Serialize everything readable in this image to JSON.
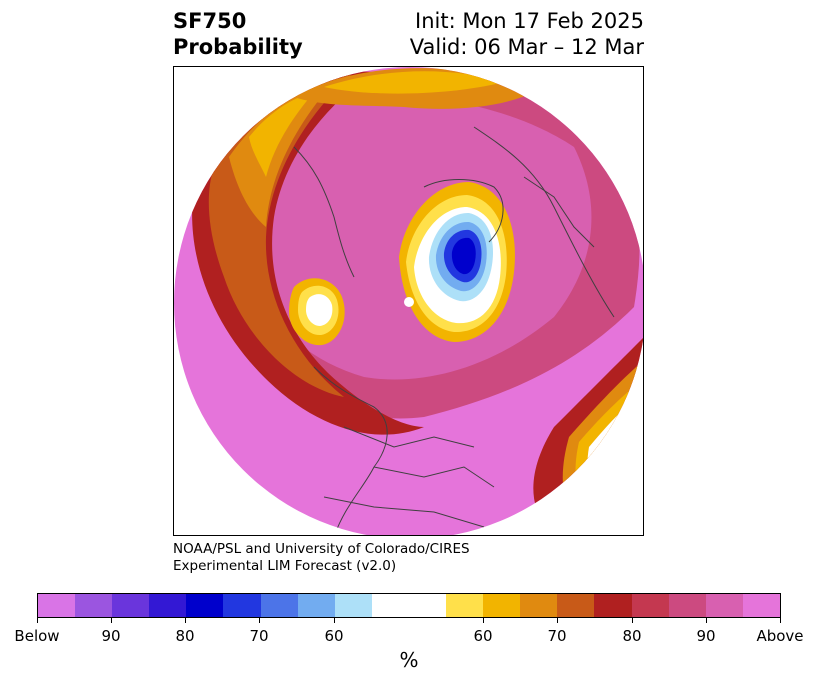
{
  "title": {
    "left_line1": "SF750",
    "left_line2": "Probability",
    "right_line1": "Init: Mon 17 Feb 2025",
    "right_line2": "Valid: 06 Mar – 12 Mar"
  },
  "credit": {
    "line1": "NOAA/PSL and University of Colorado/CIRES",
    "line2": "Experimental LIM Forecast (v2.0)"
  },
  "colorbar": {
    "colors": [
      "#d974e6",
      "#9b55e0",
      "#6a35dc",
      "#3318d4",
      "#0000cc",
      "#2237e0",
      "#4c74e8",
      "#72acf0",
      "#ade0f8",
      "#ffffff",
      "#ffffff",
      "#ffe04a",
      "#f2b400",
      "#e08a10",
      "#c85a18",
      "#b02020",
      "#c43850",
      "#cc4a80",
      "#d860b0",
      "#e574da"
    ],
    "tick_labels": [
      "Below",
      "90",
      "80",
      "70",
      "60",
      "60",
      "70",
      "80",
      "90",
      "Above"
    ],
    "unit": "%"
  },
  "map": {
    "projection": "north-polar stereographic",
    "colors": {
      "above": "#e574da",
      "p90": "#d860b0",
      "p80": "#cc4a80",
      "p70_red": "#b02020",
      "p70": "#c85a18",
      "p60": "#e08a10",
      "p55": "#f2b400",
      "light_yellow": "#ffe04a",
      "blue_dark": "#0000cc",
      "blue_mid": "#2237e0",
      "blue_light": "#72acf0",
      "blue_pale": "#ade0f8",
      "coast": "#404040"
    }
  }
}
